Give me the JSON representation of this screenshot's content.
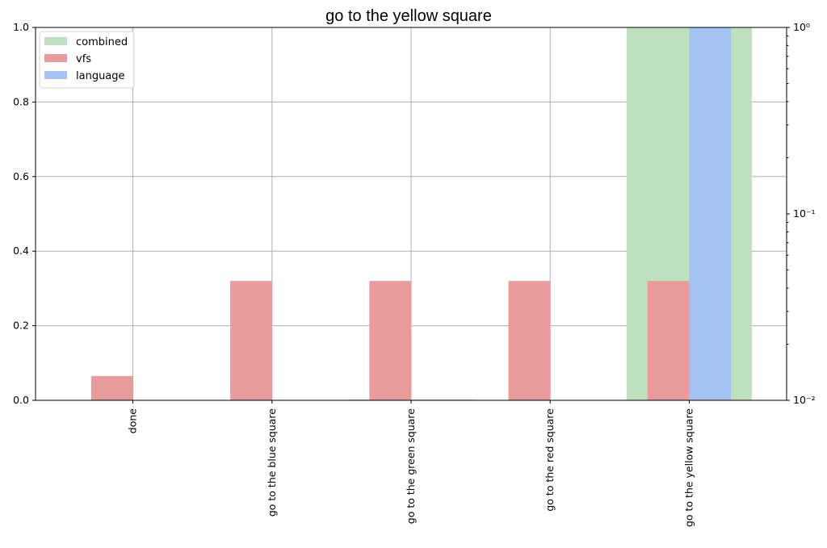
{
  "chart_data": {
    "type": "bar",
    "title": "go to the yellow square",
    "xlabel": "",
    "ylabel": "",
    "categories": [
      "done",
      "go to the blue square",
      "go to the green square",
      "go to the red square",
      "go to the yellow square"
    ],
    "series": [
      {
        "name": "combined",
        "values": [
          0.0,
          0.0,
          0.002,
          0.0,
          1.0
        ],
        "color": "#bfe0bc",
        "axis": "left",
        "offset": 0.0,
        "width_frac": 0.9
      },
      {
        "name": "vfs",
        "values": [
          0.065,
          0.32,
          0.32,
          0.32,
          0.32
        ],
        "color": "#e99b9b",
        "axis": "left",
        "offset": -0.15,
        "width_frac": 0.3
      },
      {
        "name": "language",
        "values": [
          0.0,
          0.0,
          0.0,
          0.0,
          1.0
        ],
        "color": "#a4c2f4",
        "axis": "left",
        "offset": 0.15,
        "width_frac": 0.3
      }
    ],
    "ylim": [
      0,
      1
    ],
    "y_ticks": [
      "0.0",
      "0.2",
      "0.4",
      "0.6",
      "0.8",
      "1.0"
    ],
    "y2_scale": "log",
    "y2lim": [
      0.01,
      1
    ],
    "y2_ticks": [
      "10⁻²",
      "10⁻¹",
      "10⁰"
    ],
    "grid": true,
    "legend_position": "top-left"
  }
}
